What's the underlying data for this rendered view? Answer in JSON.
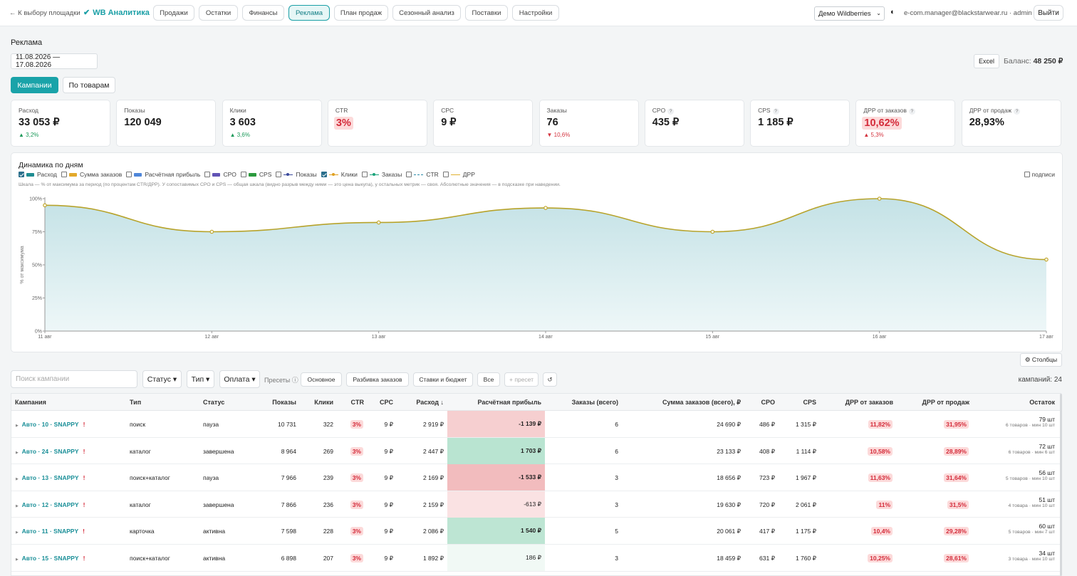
{
  "nav": {
    "back": "← К выбору площадки",
    "logo": "WB Аналитика",
    "items": [
      {
        "label": "Продажи"
      },
      {
        "label": "Остатки"
      },
      {
        "label": "Финансы"
      },
      {
        "label": "Реклама",
        "active": true
      },
      {
        "label": "План продаж"
      },
      {
        "label": "Сезонный анализ"
      },
      {
        "label": "Поставки"
      },
      {
        "label": "Настройки"
      }
    ],
    "account_select": "Демо Wildberries",
    "theme_icon": "◐",
    "user": "e-com.manager@blackstarwear.ru · admin",
    "logout": "Выйти"
  },
  "page": {
    "title": "Реклама",
    "date_range": "11.08.2026 — 17.08.2026",
    "excel": "Excel",
    "balance_label": "Баланс:",
    "balance_value": "48 250 ₽",
    "tabs": [
      "Кампании",
      "По товарам"
    ]
  },
  "kpis": [
    {
      "label": "Расход",
      "value": "33 053 ₽",
      "delta": "▲ 3,2%",
      "dir": "up"
    },
    {
      "label": "Показы",
      "value": "120 049",
      "delta": "",
      "dir": ""
    },
    {
      "label": "Клики",
      "value": "3 603",
      "delta": "▲ 3,6%",
      "dir": "up"
    },
    {
      "label": "CTR",
      "value": "3%",
      "delta": "",
      "dir": "",
      "highlight": true
    },
    {
      "label": "CPC",
      "value": "9 ₽",
      "delta": "",
      "dir": ""
    },
    {
      "label": "Заказы",
      "value": "76",
      "delta": "▼ 10,6%",
      "dir": "down"
    },
    {
      "label": "CPO",
      "value": "435 ₽",
      "delta": "",
      "dir": "",
      "help": "?"
    },
    {
      "label": "CPS",
      "value": "1 185 ₽",
      "delta": "",
      "dir": "",
      "help": "?"
    },
    {
      "label": "ДРР от заказов",
      "value": "10,62%",
      "delta": "▲ 5,3%",
      "dir": "down",
      "help": "?",
      "highlight": true
    },
    {
      "label": "ДРР от продаж",
      "value": "28,93%",
      "delta": "",
      "dir": "",
      "help": "?"
    }
  ],
  "chart_panel": {
    "title": "Динамика по дням",
    "legend": [
      {
        "label": "Расход",
        "checked": true,
        "color": "#1f8c91",
        "kind": "bar"
      },
      {
        "label": "Сумма заказов",
        "checked": false,
        "color": "#e3a92b",
        "kind": "bar"
      },
      {
        "label": "Расчётная прибыль",
        "checked": false,
        "color": "#4f86d9",
        "kind": "bar"
      },
      {
        "label": "CPO",
        "checked": false,
        "color": "#6153b5",
        "kind": "bar"
      },
      {
        "label": "CPS",
        "checked": false,
        "color": "#2c9a3e",
        "kind": "bar"
      },
      {
        "label": "Показы",
        "checked": false,
        "color": "#3b4a9c",
        "kind": "dot"
      },
      {
        "label": "Клики",
        "checked": true,
        "color": "#e0a020",
        "kind": "dot"
      },
      {
        "label": "Заказы",
        "checked": false,
        "color": "#1aa37a",
        "kind": "dot"
      },
      {
        "label": "CTR",
        "checked": false,
        "color": "#2b8aa8",
        "kind": "dash"
      },
      {
        "label": "ДРР",
        "checked": false,
        "color": "#e0b030",
        "kind": "line"
      }
    ],
    "signs_label": "подписи",
    "hint": "Шкала — % от максимума за период (по процентам CTR/ДРР). У сопоставимых CPO и CPS — общая шкала (видно разрыв между ними — это цена выкупа), у остальных метрик — своя. Абсолютные значения — в подсказке при наведении.",
    "columns_btn": "⚙ Столбцы"
  },
  "chart_data": {
    "type": "area",
    "x": [
      "11 авг",
      "12 авг",
      "13 авг",
      "14 авг",
      "15 авг",
      "16 авг",
      "17 авг"
    ],
    "yticks": [
      "0%",
      "25%",
      "50%",
      "75%",
      "100%"
    ],
    "ylabel": "% от максимума",
    "ylim": [
      0,
      100
    ],
    "series": [
      {
        "name": "Клики",
        "values": [
          95,
          75,
          82,
          93,
          75,
          100,
          54
        ]
      }
    ]
  },
  "filters": {
    "search_placeholder": "Поиск кампании",
    "status": "Статус ▾",
    "type": "Тип ▾",
    "payment": "Оплата ▾",
    "presets_label": "Пресеты ⓘ",
    "presets": [
      "Основное",
      "Разбивка заказов",
      "Ставки и бюджет",
      "Все"
    ],
    "add_preset": "+ пресет",
    "reset": "↺",
    "count": "кампаний: 24"
  },
  "table": {
    "headers": [
      "Кампания",
      "Тип",
      "Статус",
      "Показы",
      "Клики",
      "CTR",
      "CPC",
      "Расход ↓",
      "Расчётная прибыль",
      "Заказы (всего)",
      "Сумма заказов (всего), ₽",
      "CPO",
      "CPS",
      "ДРР от заказов",
      "ДРР от продаж",
      "Остаток"
    ],
    "rows": [
      {
        "name": "Авто · 10 · SNAPPY",
        "type": "поиск",
        "status": "пауза",
        "shows": "10 731",
        "clicks": "322",
        "ctr": "3%",
        "cpc": "9 ₽",
        "spend": "2 919 ₽",
        "profit": "-1 139 ₽",
        "profit_bg": "#f6cfd0",
        "orders": "6",
        "sum": "24 690 ₽",
        "cpo": "486 ₽",
        "cps": "1 315 ₽",
        "drr_o": "11,82%",
        "drr_s": "31,95%",
        "stock": "79 шт",
        "stock_sub": "6 товаров · мин 10 шт"
      },
      {
        "name": "Авто · 24 · SNAPPY",
        "type": "каталог",
        "status": "завершена",
        "shows": "8 964",
        "clicks": "269",
        "ctr": "3%",
        "cpc": "9 ₽",
        "spend": "2 447 ₽",
        "profit": "1 703 ₽",
        "profit_bg": "#b9e4d1",
        "orders": "6",
        "sum": "23 133 ₽",
        "cpo": "408 ₽",
        "cps": "1 114 ₽",
        "drr_o": "10,58%",
        "drr_s": "28,89%",
        "stock": "72 шт",
        "stock_sub": "6 товаров · мин 6 шт"
      },
      {
        "name": "Авто · 13 · SNAPPY",
        "type": "поиск+каталог",
        "status": "пауза",
        "shows": "7 966",
        "clicks": "239",
        "ctr": "3%",
        "cpc": "9 ₽",
        "spend": "2 169 ₽",
        "profit": "-1 533 ₽",
        "profit_bg": "#f2bcbe",
        "orders": "3",
        "sum": "18 656 ₽",
        "cpo": "723 ₽",
        "cps": "1 967 ₽",
        "drr_o": "11,63%",
        "drr_s": "31,64%",
        "stock": "56 шт",
        "stock_sub": "5 товаров · мин 10 шт"
      },
      {
        "name": "Авто · 12 · SNAPPY",
        "type": "каталог",
        "status": "завершена",
        "shows": "7 866",
        "clicks": "236",
        "ctr": "3%",
        "cpc": "9 ₽",
        "spend": "2 159 ₽",
        "profit": "-613 ₽",
        "profit_bg": "#fae2e3",
        "orders": "3",
        "sum": "19 630 ₽",
        "cpo": "720 ₽",
        "cps": "2 061 ₽",
        "drr_o": "11%",
        "drr_s": "31,5%",
        "stock": "51 шт",
        "stock_sub": "4 товара · мин 10 шт"
      },
      {
        "name": "Авто · 11 · SNAPPY",
        "type": "карточка",
        "status": "активна",
        "shows": "7 598",
        "clicks": "228",
        "ctr": "3%",
        "cpc": "9 ₽",
        "spend": "2 086 ₽",
        "profit": "1 540 ₽",
        "profit_bg": "#bde5d3",
        "orders": "5",
        "sum": "20 061 ₽",
        "cpo": "417 ₽",
        "cps": "1 175 ₽",
        "drr_o": "10,4%",
        "drr_s": "29,28%",
        "stock": "60 шт",
        "stock_sub": "5 товаров · мин 7 шт"
      },
      {
        "name": "Авто · 15 · SNAPPY",
        "type": "поиск+каталог",
        "status": "активна",
        "shows": "6 898",
        "clicks": "207",
        "ctr": "3%",
        "cpc": "9 ₽",
        "spend": "1 892 ₽",
        "profit": "186 ₽",
        "profit_bg": "#f1f9f5",
        "orders": "3",
        "sum": "18 459 ₽",
        "cpo": "631 ₽",
        "cps": "1 760 ₽",
        "drr_o": "10,25%",
        "drr_s": "28,61%",
        "stock": "34 шт",
        "stock_sub": "3 товара · мин 10 шт"
      }
    ]
  }
}
